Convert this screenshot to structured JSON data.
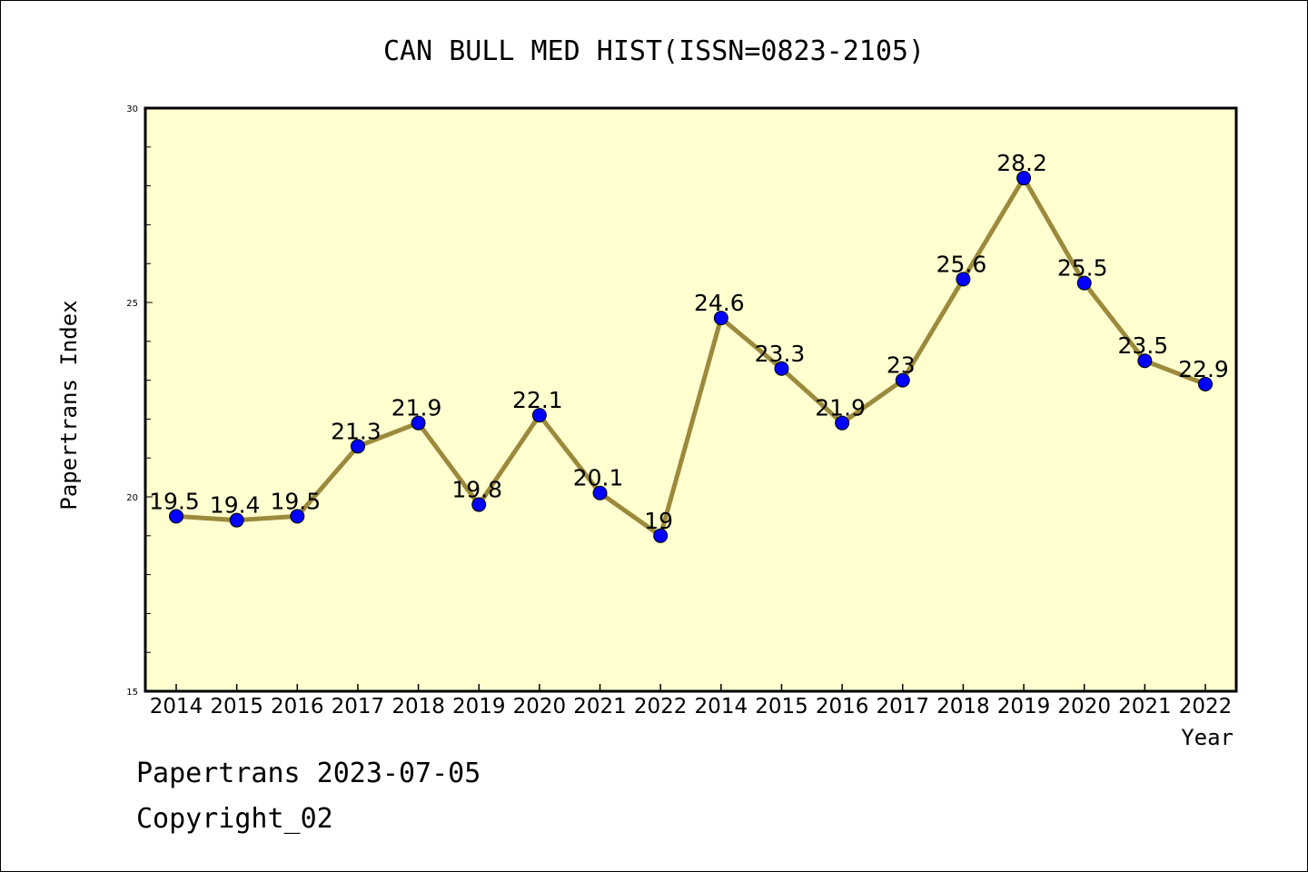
{
  "footer": {
    "line1": "Papertrans 2023-07-05",
    "line2": "Copyright_02"
  },
  "chart_data": {
    "type": "line",
    "title": "CAN BULL MED HIST(ISSN=0823-2105)",
    "xlabel": "Year",
    "ylabel": "Papertrans Index",
    "categories": [
      "2014",
      "2015",
      "2016",
      "2017",
      "2018",
      "2019",
      "2020",
      "2021",
      "2022",
      "2014",
      "2015",
      "2016",
      "2017",
      "2018",
      "2019",
      "2020",
      "2021",
      "2022"
    ],
    "series": [
      {
        "values": [
          19.5,
          19.4,
          19.5,
          21.3,
          21.9,
          19.8,
          22.1,
          20.1,
          19,
          24.6,
          23.3,
          21.9,
          23,
          25.6,
          28.2,
          25.5,
          23.5,
          22.9
        ]
      }
    ],
    "data_labels": [
      "19.5",
      "19.4",
      "19.5",
      "21.3",
      "21.9",
      "19.8",
      "22.1",
      "20.1",
      "19",
      "24.6",
      "23.3",
      "21.9",
      "23",
      "25.6",
      "28.2",
      "25.5",
      "23.5",
      "22.9"
    ],
    "ylim": [
      15,
      30
    ],
    "yticks": [
      15,
      20,
      25,
      30
    ],
    "grid": false,
    "colors": {
      "plot_background": "#ffffd0",
      "line": "#9c8a3c",
      "marker": "#0000ff"
    }
  }
}
